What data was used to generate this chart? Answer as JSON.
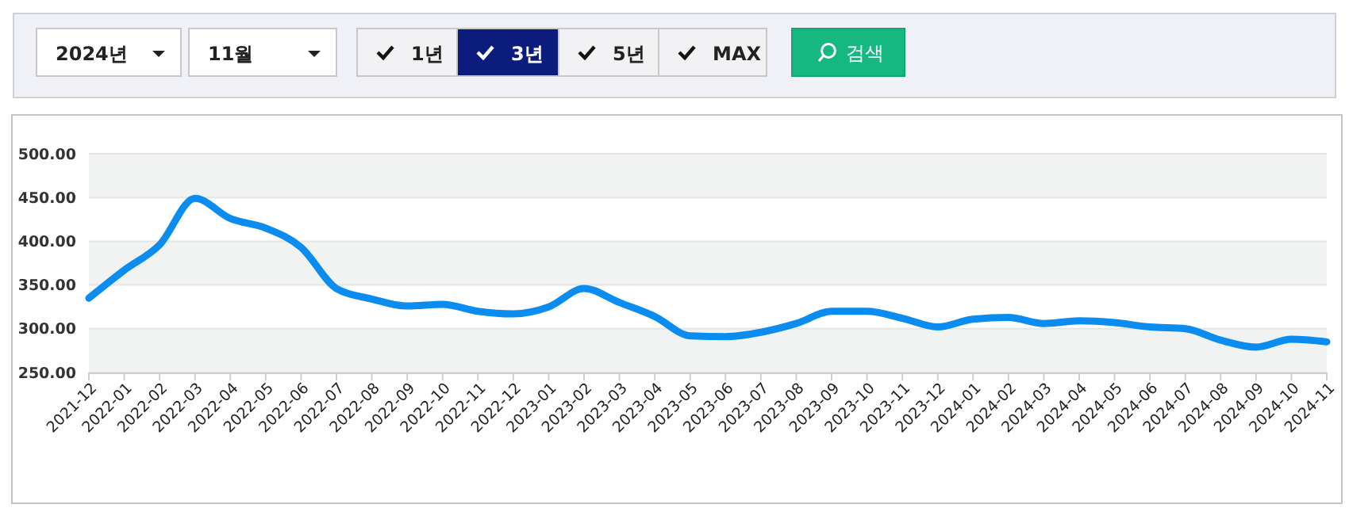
{
  "chart_data": {
    "type": "line",
    "categories": [
      "2021-12",
      "2022-01",
      "2022-02",
      "2022-03",
      "2022-04",
      "2022-05",
      "2022-06",
      "2022-07",
      "2022-08",
      "2022-09",
      "2022-10",
      "2022-11",
      "2022-12",
      "2023-01",
      "2023-02",
      "2023-03",
      "2023-04",
      "2023-05",
      "2023-06",
      "2023-07",
      "2023-08",
      "2023-09",
      "2023-10",
      "2023-11",
      "2023-12",
      "2024-01",
      "2024-02",
      "2024-03",
      "2024-04",
      "2024-05",
      "2024-06",
      "2024-07",
      "2024-08",
      "2024-09",
      "2024-10",
      "2024-11"
    ],
    "series": [
      {
        "color": "#0a8cf0",
        "values": [
          335,
          367,
          396,
          449,
          426,
          415,
          393,
          346,
          334,
          326,
          328,
          320,
          317,
          325,
          346,
          330,
          314,
          292,
          291,
          296,
          306,
          320,
          320,
          312,
          302,
          311,
          313,
          306,
          309,
          307,
          302,
          300,
          287,
          279,
          288,
          285
        ]
      }
    ],
    "ylim": [
      250,
      500
    ],
    "yticks": [
      {
        "value": 250,
        "label": "250.00"
      },
      {
        "value": 300,
        "label": "300.00"
      },
      {
        "value": 350,
        "label": "350.00"
      },
      {
        "value": 400,
        "label": "400.00"
      },
      {
        "value": 450,
        "label": "450.00"
      },
      {
        "value": 500,
        "label": "500.00"
      }
    ],
    "grid": "y",
    "marker": "none",
    "line_style": "solid",
    "annotations": [
      "2024년",
      "11월",
      "1년",
      "3년",
      "5년",
      "MAX",
      "검색"
    ]
  }
}
